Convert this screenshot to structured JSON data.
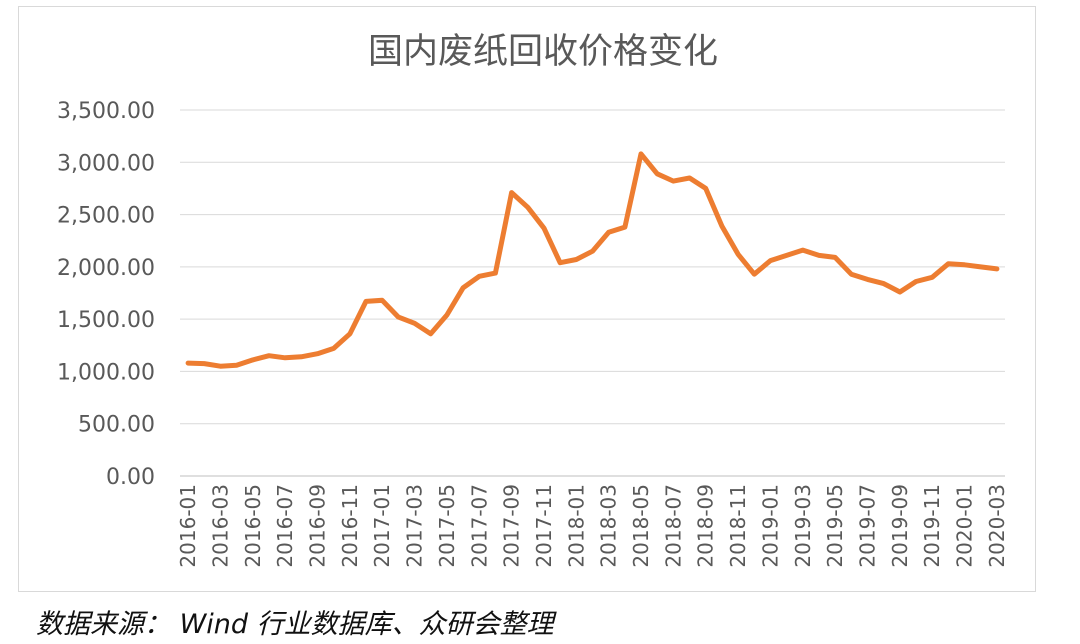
{
  "chart_data": {
    "type": "line",
    "title": "国内废纸回收价格变化",
    "xlabel": "",
    "ylabel": "",
    "ylim": [
      0,
      3500
    ],
    "yticks": [
      "0.00",
      "500.00",
      "1,000.00",
      "1,500.00",
      "2,000.00",
      "2,500.00",
      "3,000.00",
      "3,500.00"
    ],
    "xtick_labels": [
      "2016-01",
      "2016-03",
      "2016-05",
      "2016-07",
      "2016-09",
      "2016-11",
      "2017-01",
      "2017-03",
      "2017-05",
      "2017-07",
      "2017-09",
      "2017-11",
      "2018-01",
      "2018-03",
      "2018-05",
      "2018-07",
      "2018-09",
      "2018-11",
      "2019-01",
      "2019-03",
      "2019-05",
      "2019-07",
      "2019-09",
      "2019-11",
      "2020-01",
      "2020-03"
    ],
    "grid": true,
    "legend": "none",
    "line_color": "#ED7D31",
    "series": [
      {
        "x": [
          "2016-01",
          "2016-02",
          "2016-03",
          "2016-04",
          "2016-05",
          "2016-06",
          "2016-07",
          "2016-08",
          "2016-09",
          "2016-10",
          "2016-11",
          "2016-12",
          "2017-01",
          "2017-02",
          "2017-03",
          "2017-04",
          "2017-05",
          "2017-06",
          "2017-07",
          "2017-08",
          "2017-09",
          "2017-10",
          "2017-11",
          "2017-12",
          "2018-01",
          "2018-02",
          "2018-03",
          "2018-04",
          "2018-05",
          "2018-06",
          "2018-07",
          "2018-08",
          "2018-09",
          "2018-10",
          "2018-11",
          "2018-12",
          "2019-01",
          "2019-02",
          "2019-03",
          "2019-04",
          "2019-05",
          "2019-06",
          "2019-07",
          "2019-08",
          "2019-09",
          "2019-10",
          "2019-11",
          "2019-12",
          "2020-01",
          "2020-02",
          "2020-03"
        ],
        "values": [
          1080,
          1075,
          1050,
          1060,
          1110,
          1150,
          1130,
          1140,
          1170,
          1220,
          1360,
          1670,
          1680,
          1520,
          1460,
          1360,
          1540,
          1800,
          1910,
          1940,
          2710,
          2570,
          2370,
          2040,
          2070,
          2150,
          2330,
          2380,
          3080,
          2890,
          2820,
          2850,
          2750,
          2390,
          2120,
          1930,
          2060,
          2110,
          2160,
          2110,
          2090,
          1930,
          1880,
          1840,
          1760,
          1860,
          1900,
          2030,
          2020,
          2000,
          1980
        ]
      }
    ]
  },
  "source_note": "数据来源： Wind 行业数据库、众研会整理"
}
